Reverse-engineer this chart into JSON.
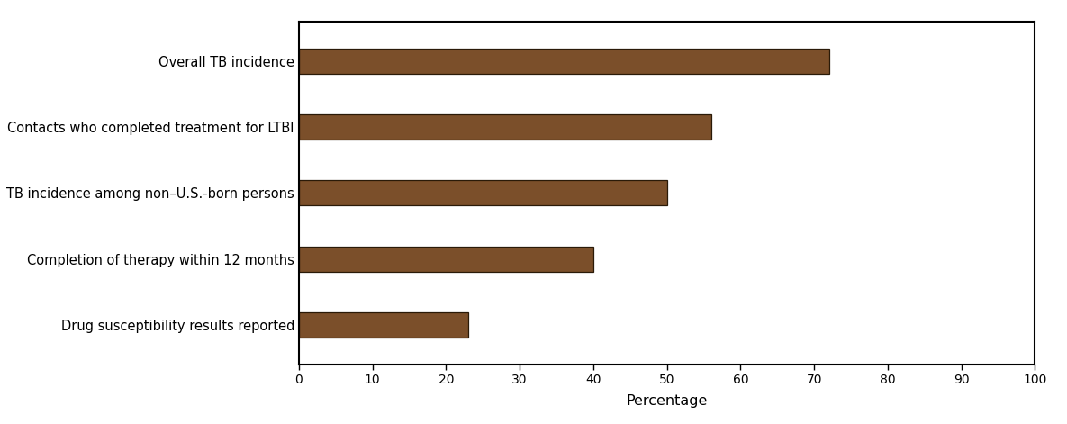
{
  "categories": [
    "Drug susceptibility results reported",
    "Completion of therapy within 12 months",
    "TB incidence among non–U.S.-born persons",
    "Contacts who completed treatment for LTBI",
    "Overall TB incidence"
  ],
  "values": [
    23,
    40,
    50,
    56,
    72
  ],
  "bar_color": "#7B4F2A",
  "bar_edgecolor": "#2A1A08",
  "xlabel": "Percentage",
  "xlim": [
    0,
    100
  ],
  "xticks": [
    0,
    10,
    20,
    30,
    40,
    50,
    60,
    70,
    80,
    90,
    100
  ],
  "background_color": "#ffffff",
  "bar_height": 0.38,
  "label_fontsize": 10.5,
  "axis_label_fontsize": 11.5,
  "tick_fontsize": 10
}
